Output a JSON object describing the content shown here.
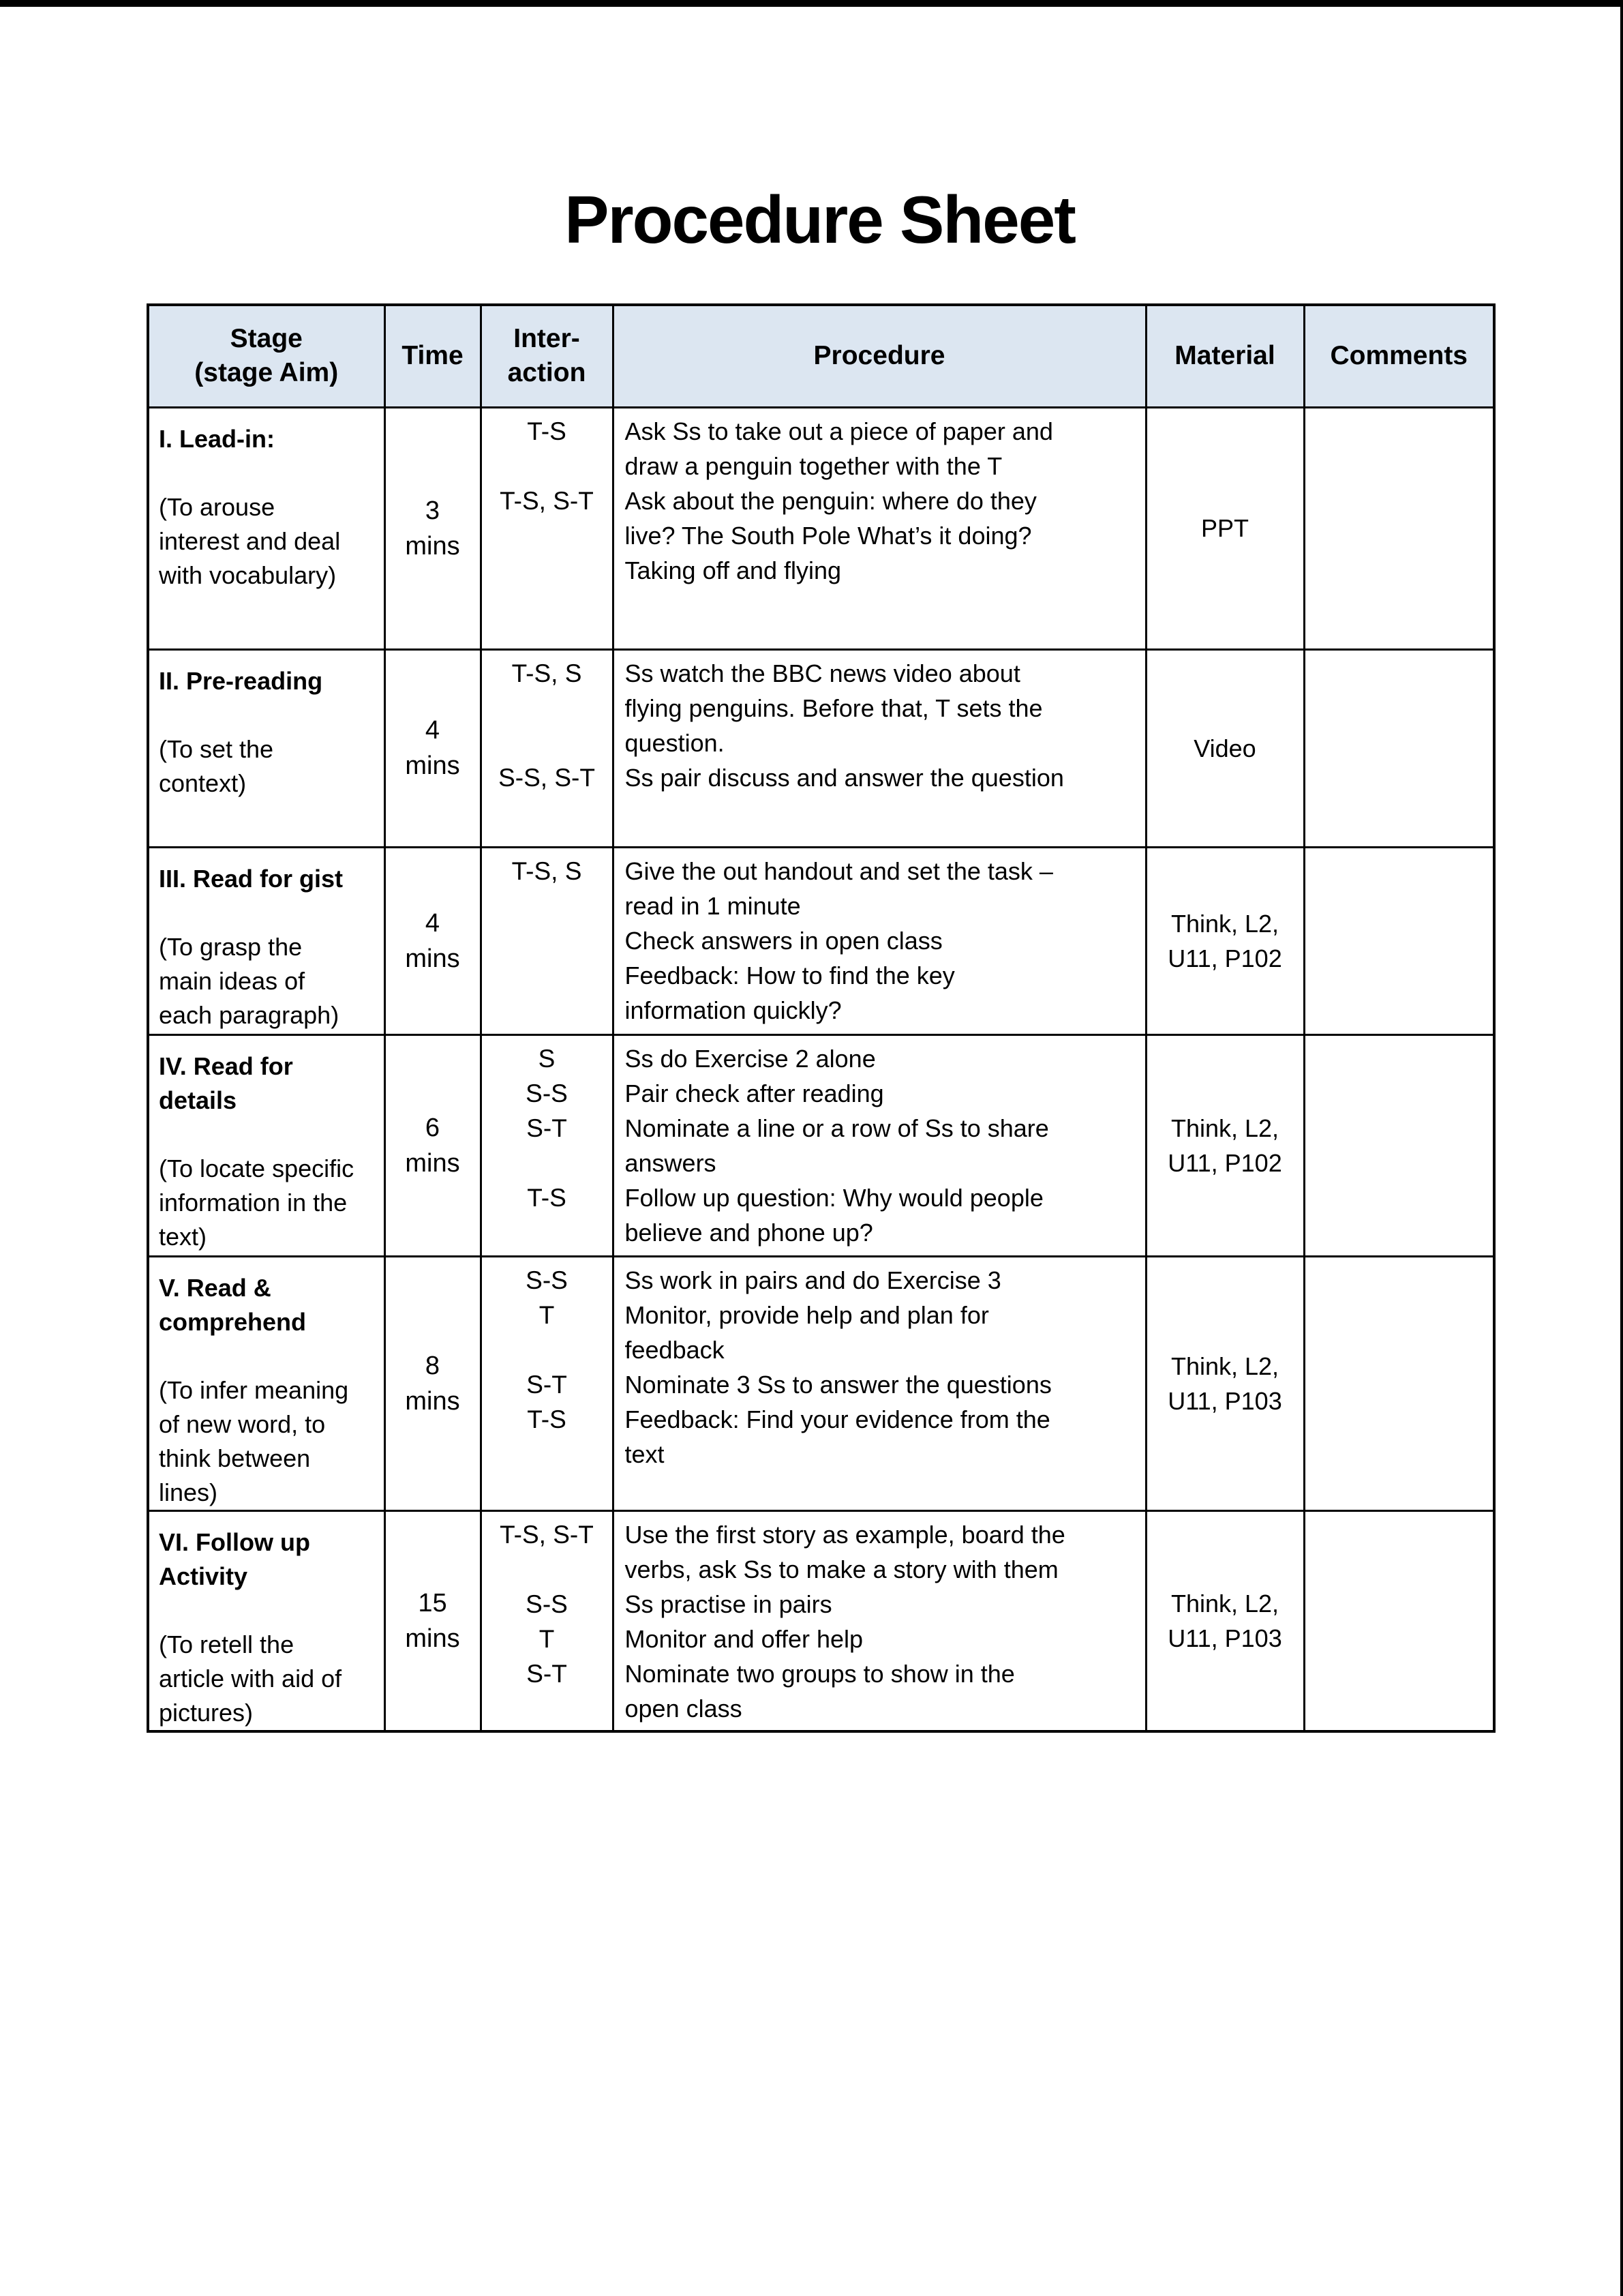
{
  "page": {
    "title": "Procedure Sheet"
  },
  "table": {
    "columns": [
      {
        "id": "stage",
        "label_lines": [
          "Stage",
          "(stage Aim)"
        ]
      },
      {
        "id": "time",
        "label_lines": [
          "Time"
        ]
      },
      {
        "id": "interaction",
        "label_lines": [
          "Inter-",
          "action"
        ]
      },
      {
        "id": "procedure",
        "label_lines": [
          "Procedure"
        ]
      },
      {
        "id": "material",
        "label_lines": [
          "Material"
        ]
      },
      {
        "id": "comments",
        "label_lines": [
          "Comments"
        ]
      }
    ],
    "rows": [
      {
        "stage_heading_lines": [
          "I. Lead-in:"
        ],
        "stage_aim_lines": [
          "(To arouse",
          "interest and deal",
          "with vocabulary)"
        ],
        "time_lines": [
          "3",
          "mins"
        ],
        "interaction_lines": [
          "T-S",
          "",
          "T-S, S-T"
        ],
        "procedure_lines": [
          "Ask Ss to take out a piece of paper and",
          "draw a penguin together with the T",
          "Ask about the penguin: where do they",
          "live? The South Pole What’s it doing?",
          "Taking off and flying"
        ],
        "material": "PPT",
        "comments": ""
      },
      {
        "stage_heading_lines": [
          "II. Pre-reading"
        ],
        "stage_aim_lines": [
          "(To set the",
          "context)"
        ],
        "time_lines": [
          "4",
          "mins"
        ],
        "interaction_lines": [
          "T-S, S",
          "",
          "",
          "S-S, S-T"
        ],
        "procedure_lines": [
          "Ss watch the BBC news video about",
          "flying penguins. Before that, T sets the",
          "question.",
          "Ss pair discuss and answer the question"
        ],
        "material": "Video",
        "comments": ""
      },
      {
        "stage_heading_lines": [
          "III. Read for gist"
        ],
        "stage_aim_lines": [
          "(To grasp the",
          "main ideas of",
          "each paragraph)"
        ],
        "time_lines": [
          "4",
          "mins"
        ],
        "interaction_lines": [
          "T-S, S"
        ],
        "procedure_lines": [
          "Give the out handout and set the task –",
          "read in 1 minute",
          "Check answers in open class",
          "Feedback: How to find the key",
          "information quickly?"
        ],
        "material": "Think, L2, U11, P102",
        "comments": ""
      },
      {
        "stage_heading_lines": [
          "IV. Read for",
          "details"
        ],
        "stage_aim_lines": [
          "(To locate specific",
          "information in the",
          "text)"
        ],
        "time_lines": [
          "6",
          "mins"
        ],
        "interaction_lines": [
          "S",
          "S-S",
          "S-T",
          "",
          "T-S"
        ],
        "procedure_lines": [
          "Ss do Exercise 2 alone",
          "Pair check after reading",
          "Nominate a line or a row of Ss to share",
          "answers",
          "Follow up question: Why would people",
          "believe and phone up?"
        ],
        "material": "Think, L2, U11, P102",
        "comments": ""
      },
      {
        "stage_heading_lines": [
          "V. Read &",
          "comprehend"
        ],
        "stage_aim_lines": [
          "(To infer meaning",
          "of new word, to",
          "think between",
          "lines)"
        ],
        "time_lines": [
          "8",
          "mins"
        ],
        "interaction_lines": [
          "S-S",
          "T",
          "",
          "S-T",
          "T-S"
        ],
        "procedure_lines": [
          "Ss work in pairs and do Exercise 3",
          "Monitor, provide help and plan for",
          "feedback",
          "Nominate 3 Ss to answer the questions",
          "Feedback: Find your evidence from the",
          "text"
        ],
        "material": "Think, L2, U11, P103",
        "comments": ""
      },
      {
        "stage_heading_lines": [
          "VI. Follow up",
          "Activity"
        ],
        "stage_aim_lines": [
          "(To retell the",
          "article with aid of",
          "pictures)"
        ],
        "time_lines": [
          "15",
          "mins"
        ],
        "interaction_lines": [
          "T-S, S-T",
          "",
          "S-S",
          "T",
          "S-T"
        ],
        "procedure_lines": [
          "Use the first story as example, board the",
          "verbs, ask Ss to make a story with them",
          "Ss practise in pairs",
          "Monitor and offer help",
          "Nominate two groups to show in the",
          "open class"
        ],
        "material": "Think, L2, U11, P103",
        "comments": ""
      }
    ]
  }
}
